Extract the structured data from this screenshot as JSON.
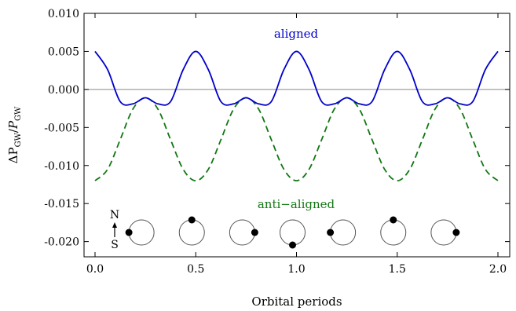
{
  "chart_data": {
    "type": "line",
    "xlabel": "Orbital periods",
    "ylabel_main": "ΔP",
    "ylabel_sub1": "GW",
    "ylabel_mid": "/",
    "ylabel_italic": "P",
    "ylabel_sub2": "GW",
    "xlim": [
      0.0,
      2.0
    ],
    "ylim": [
      -0.022,
      0.01
    ],
    "x_ticks": [
      {
        "value": 0.0,
        "label": "0.0"
      },
      {
        "value": 0.5,
        "label": "0.5"
      },
      {
        "value": 1.0,
        "label": "1.0"
      },
      {
        "value": 1.5,
        "label": "1.5"
      },
      {
        "value": 2.0,
        "label": "2.0"
      }
    ],
    "y_ticks": [
      {
        "value": 0.01,
        "label": "0.010"
      },
      {
        "value": 0.005,
        "label": "0.005"
      },
      {
        "value": 0.0,
        "label": "0.000"
      },
      {
        "value": -0.005,
        "label": "-0.005"
      },
      {
        "value": -0.01,
        "label": "-0.010"
      },
      {
        "value": -0.015,
        "label": "-0.015"
      },
      {
        "value": -0.02,
        "label": "-0.020"
      }
    ],
    "series": [
      {
        "key": "aligned",
        "name": "aligned",
        "color": "#0000cc",
        "dash": "solid",
        "x": [
          0.0,
          0.0625,
          0.125,
          0.1875,
          0.25,
          0.3125,
          0.375,
          0.4375,
          0.5,
          0.5625,
          0.625,
          0.6875,
          0.75,
          0.8125,
          0.875,
          0.9375,
          1.0,
          1.0625,
          1.125,
          1.1875,
          1.25,
          1.3125,
          1.375,
          1.4375,
          1.5,
          1.5625,
          1.625,
          1.6875,
          1.75,
          1.8125,
          1.875,
          1.9375,
          2.0
        ],
        "y": [
          0.005,
          0.0026,
          -0.0016,
          -0.0019,
          -0.0011,
          -0.0019,
          -0.0016,
          0.0026,
          0.005,
          0.0026,
          -0.0016,
          -0.0019,
          -0.0011,
          -0.0019,
          -0.0016,
          0.0026,
          0.005,
          0.0026,
          -0.0016,
          -0.0019,
          -0.0011,
          -0.0019,
          -0.0016,
          0.0026,
          0.005,
          0.0026,
          -0.0016,
          -0.0019,
          -0.0011,
          -0.0019,
          -0.0016,
          0.0026,
          0.005
        ]
      },
      {
        "key": "anti",
        "name": "anti-aligned",
        "color": "#117711",
        "dash": "dashed",
        "x": [
          0.0,
          0.0625,
          0.125,
          0.1875,
          0.25,
          0.3125,
          0.375,
          0.4375,
          0.5,
          0.5625,
          0.625,
          0.6875,
          0.75,
          0.8125,
          0.875,
          0.9375,
          1.0,
          1.0625,
          1.125,
          1.1875,
          1.25,
          1.3125,
          1.375,
          1.4375,
          1.5,
          1.5625,
          1.625,
          1.6875,
          1.75,
          1.8125,
          1.875,
          1.9375,
          2.0
        ],
        "y": [
          -0.012,
          -0.0105,
          -0.0066,
          -0.0026,
          -0.0011,
          -0.0026,
          -0.0066,
          -0.0105,
          -0.012,
          -0.0105,
          -0.0066,
          -0.0026,
          -0.0011,
          -0.0026,
          -0.0066,
          -0.0105,
          -0.012,
          -0.0105,
          -0.0066,
          -0.0026,
          -0.0011,
          -0.0026,
          -0.0066,
          -0.0105,
          -0.012,
          -0.0105,
          -0.0066,
          -0.0026,
          -0.0011,
          -0.0026,
          -0.0066,
          -0.0105,
          -0.012
        ]
      }
    ],
    "annotations": {
      "aligned": "aligned",
      "anti_aligned": "anti−aligned",
      "north": "N",
      "south": "S"
    },
    "orbit_markers": [
      {
        "x": 0.25,
        "position": "left"
      },
      {
        "x": 0.5,
        "position": "top"
      },
      {
        "x": 0.75,
        "position": "right"
      },
      {
        "x": 1.0,
        "position": "bottom"
      },
      {
        "x": 1.25,
        "position": "left"
      },
      {
        "x": 1.5,
        "position": "top"
      },
      {
        "x": 1.75,
        "position": "right"
      }
    ],
    "zero_line": true,
    "grid": false,
    "legend": "none"
  }
}
